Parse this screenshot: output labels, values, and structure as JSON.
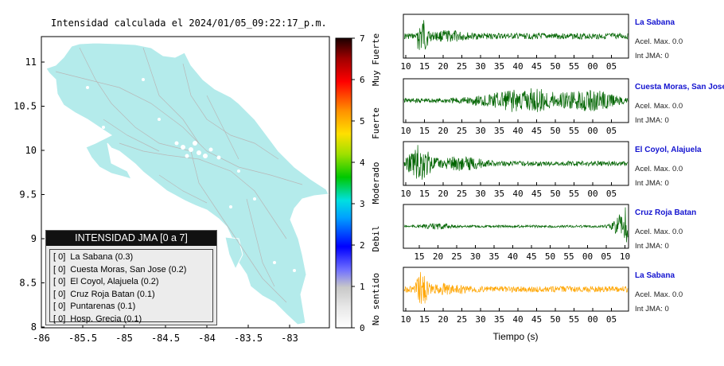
{
  "title": "Intensidad calculada el 2024/01/05_09:22:17_p.m.",
  "map": {
    "xticks": [
      "-86",
      "-85.5",
      "-85",
      "-84.5",
      "-84",
      "-83.5",
      "-83"
    ],
    "yticks": [
      "11",
      "10.5",
      "10",
      "9.5",
      "9",
      "8.5",
      "8"
    ],
    "xlim": [
      -86,
      -82.5
    ],
    "ylim": [
      8,
      11.3
    ],
    "land_color": "#b4ebeb"
  },
  "legend": {
    "title": "INTENSIDAD JMA [0 a 7]",
    "items": [
      {
        "code": "[ 0]",
        "label": "La Sabana (0.3)"
      },
      {
        "code": "[ 0]",
        "label": "Cuesta Moras, San Jose (0.2)"
      },
      {
        "code": "[ 0]",
        "label": "El Coyol, Alajuela (0.2)"
      },
      {
        "code": "[ 0]",
        "label": "Cruz Roja Batan (0.1)"
      },
      {
        "code": "[ 0]",
        "label": "Puntarenas (0.1)"
      },
      {
        "code": "[ 0]",
        "label": "Hosp. Grecia (0.1)"
      }
    ]
  },
  "colorbar": {
    "ticks": [
      "0",
      "1",
      "2",
      "3",
      "4",
      "5",
      "6",
      "7"
    ],
    "labels": [
      "No sentido",
      "Debil",
      "Moderado",
      "Fuerte",
      "Muy Fuerte"
    ]
  },
  "waveforms": {
    "xlabel": "Tiempo (s)",
    "panels": [
      {
        "name": "La Sabana",
        "accel": "Acel. Max. 0.0",
        "int": "Int JMA: 0",
        "color": "#006400",
        "ticks": [
          "10",
          "15",
          "20",
          "25",
          "30",
          "35",
          "40",
          "45",
          "50",
          "55",
          "00",
          "05"
        ]
      },
      {
        "name": "Cuesta Moras, San Jose",
        "accel": "Acel. Max. 0.0",
        "int": "Int JMA: 0",
        "color": "#006400",
        "ticks": [
          "10",
          "15",
          "20",
          "25",
          "30",
          "35",
          "40",
          "45",
          "50",
          "55",
          "00",
          "05"
        ]
      },
      {
        "name": "El Coyol, Alajuela",
        "accel": "Acel. Max. 0.0",
        "int": "Int JMA: 0",
        "color": "#006400",
        "ticks": [
          "10",
          "15",
          "20",
          "25",
          "30",
          "35",
          "40",
          "45",
          "50",
          "55",
          "00",
          "05"
        ]
      },
      {
        "name": "Cruz Roja Batan",
        "accel": "Acel. Max. 0.0",
        "int": "Int JMA: 0",
        "color": "#006400",
        "ticks": [
          "15",
          "20",
          "25",
          "30",
          "35",
          "40",
          "45",
          "50",
          "55",
          "00",
          "05",
          "10"
        ]
      },
      {
        "name": "La Sabana",
        "accel": "Acel. Max. 0.0",
        "int": "Int JMA: 0",
        "color": "#ffa500",
        "ticks": [
          "10",
          "15",
          "20",
          "25",
          "30",
          "35",
          "40",
          "45",
          "50",
          "55",
          "00",
          "05"
        ]
      }
    ]
  },
  "chart_data": {
    "type": "heatmap",
    "title": "Intensidad calculada el 2024/01/05_09:22:17_p.m.",
    "xlim": [
      -86,
      -82.5
    ],
    "ylim": [
      8,
      11.3
    ],
    "colorbar_range": [
      0,
      7
    ],
    "stations": [
      {
        "name": "La Sabana",
        "intensity": 0.3
      },
      {
        "name": "Cuesta Moras, San Jose",
        "intensity": 0.2
      },
      {
        "name": "El Coyol, Alajuela",
        "intensity": 0.2
      },
      {
        "name": "Cruz Roja Batan",
        "intensity": 0.1
      },
      {
        "name": "Puntarenas",
        "intensity": 0.1
      },
      {
        "name": "Hosp. Grecia",
        "intensity": 0.1
      }
    ]
  }
}
